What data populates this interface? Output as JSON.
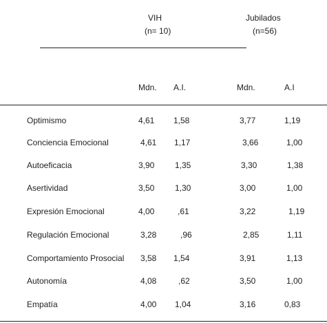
{
  "groups": {
    "vih": {
      "name": "VIH",
      "n": "(n= 10)"
    },
    "jubilados": {
      "name": "Jubilados",
      "n": "(n=56)"
    }
  },
  "columns": {
    "vih_mdn": "Mdn.",
    "vih_ai": "A.I.",
    "jub_mdn": "Mdn.",
    "jub_ai": "A.I"
  },
  "rows": [
    {
      "label": "Optimismo",
      "vih_mdn": "4,61",
      "vih_ai": "1,58",
      "jub_mdn": "3,77",
      "jub_ai": "1,19"
    },
    {
      "label": "Conciencia Emocional",
      "vih_mdn": "4,61",
      "vih_ai": "1,17",
      "jub_mdn": "3,66",
      "jub_ai": "1,00"
    },
    {
      "label": "Autoeficacia",
      "vih_mdn": "3,90",
      "vih_ai": "1,35",
      "jub_mdn": "3,30",
      "jub_ai": "1,38"
    },
    {
      "label": "Asertividad",
      "vih_mdn": "3,50",
      "vih_ai": "1,30",
      "jub_mdn": "3,00",
      "jub_ai": "1,00"
    },
    {
      "label": "Expresión Emocional",
      "vih_mdn": "4,00",
      "vih_ai": ",61",
      "jub_mdn": "3,22",
      "jub_ai": "1,19"
    },
    {
      "label": "Regulación Emocional",
      "vih_mdn": "3,28",
      "vih_ai": ",96",
      "jub_mdn": "2,85",
      "jub_ai": "1,11"
    },
    {
      "label": "Comportamiento Prosocial",
      "vih_mdn": "3,58",
      "vih_ai": "1,54",
      "jub_mdn": "3,91",
      "jub_ai": "1,13"
    },
    {
      "label": "Autonomía",
      "vih_mdn": "4,08",
      "vih_ai": ",62",
      "jub_mdn": "3,50",
      "jub_ai": "1,00"
    },
    {
      "label": "Empatía",
      "vih_mdn": "4,00",
      "vih_ai": "1,04",
      "jub_mdn": "3,16",
      "jub_ai": "0,83"
    }
  ]
}
